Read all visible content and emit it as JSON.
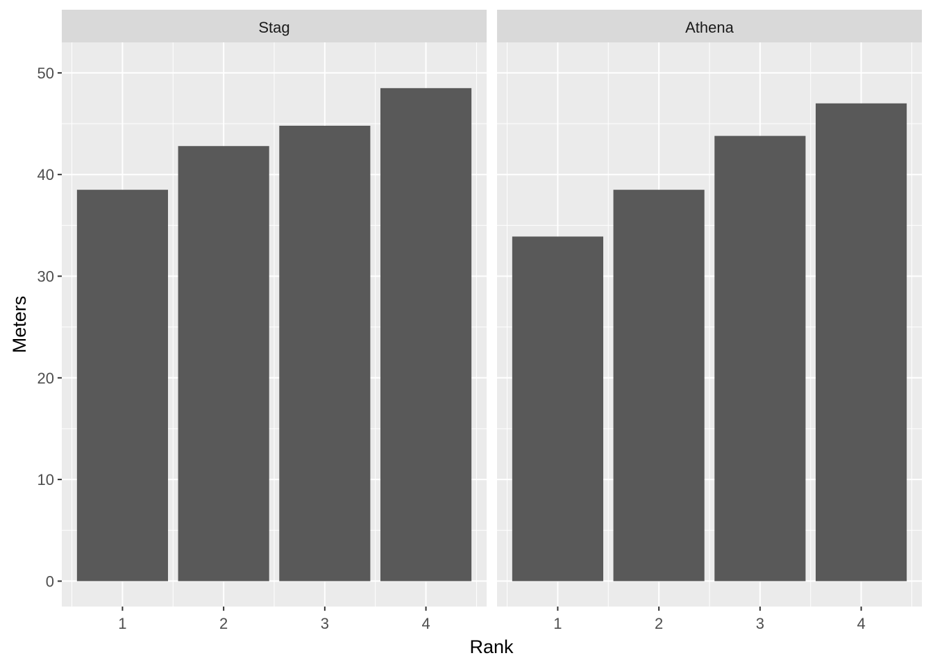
{
  "chart_data": {
    "type": "bar",
    "xlabel": "Rank",
    "ylabel": "Meters",
    "ylim": [
      -2.5,
      53
    ],
    "yticks": [
      0,
      10,
      20,
      30,
      40,
      50
    ],
    "categories": [
      "1",
      "2",
      "3",
      "4"
    ],
    "grid": true,
    "facets": [
      {
        "name": "Stag",
        "values": [
          38.5,
          42.8,
          44.8,
          48.5
        ]
      },
      {
        "name": "Athena",
        "values": [
          33.9,
          38.5,
          43.8,
          47.0
        ]
      }
    ],
    "colors": {
      "bar": "#595959",
      "panel": "#ebebeb",
      "strip": "#d9d9d9",
      "grid": "#ffffff"
    }
  }
}
